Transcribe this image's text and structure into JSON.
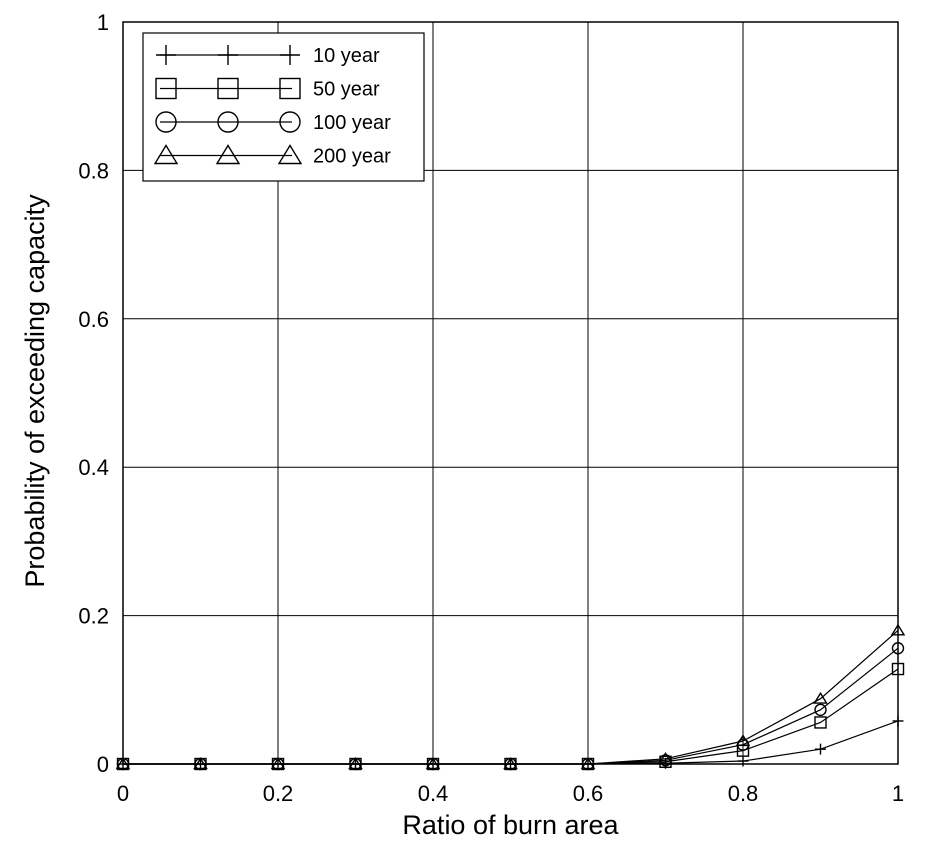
{
  "chart_data": {
    "type": "line",
    "title": "",
    "xlabel": "Ratio of burn area",
    "ylabel": "Probability of exceeding capacity",
    "xlim": [
      0,
      1
    ],
    "ylim": [
      0,
      1
    ],
    "xticks": [
      0,
      0.2,
      0.4,
      0.6,
      0.8,
      1
    ],
    "yticks": [
      0,
      0.2,
      0.4,
      0.6,
      0.8,
      1
    ],
    "xtick_labels": [
      "0",
      "0.2",
      "0.4",
      "0.6",
      "0.8",
      "1"
    ],
    "ytick_labels": [
      "0",
      "0.2",
      "0.4",
      "0.6",
      "0.8",
      "1"
    ],
    "grid": true,
    "legend_position": "top-left",
    "x": [
      0,
      0.1,
      0.2,
      0.3,
      0.4,
      0.5,
      0.6,
      0.7,
      0.8,
      0.9,
      1.0
    ],
    "series": [
      {
        "name": "10 year",
        "marker": "plus",
        "values": [
          0,
          0,
          0,
          0,
          0,
          0,
          0,
          0.001,
          0.004,
          0.02,
          0.058
        ]
      },
      {
        "name": "50 year",
        "marker": "square",
        "values": [
          0,
          0,
          0,
          0,
          0,
          0,
          0,
          0.003,
          0.018,
          0.056,
          0.128
        ]
      },
      {
        "name": "100 year",
        "marker": "circle",
        "values": [
          0,
          0,
          0,
          0,
          0,
          0,
          0,
          0.005,
          0.026,
          0.073,
          0.156
        ]
      },
      {
        "name": "200 year",
        "marker": "triangle",
        "values": [
          0,
          0,
          0,
          0,
          0,
          0,
          0,
          0.007,
          0.031,
          0.088,
          0.18
        ]
      }
    ],
    "line_color": "#000000",
    "grid_color": "#000000"
  }
}
